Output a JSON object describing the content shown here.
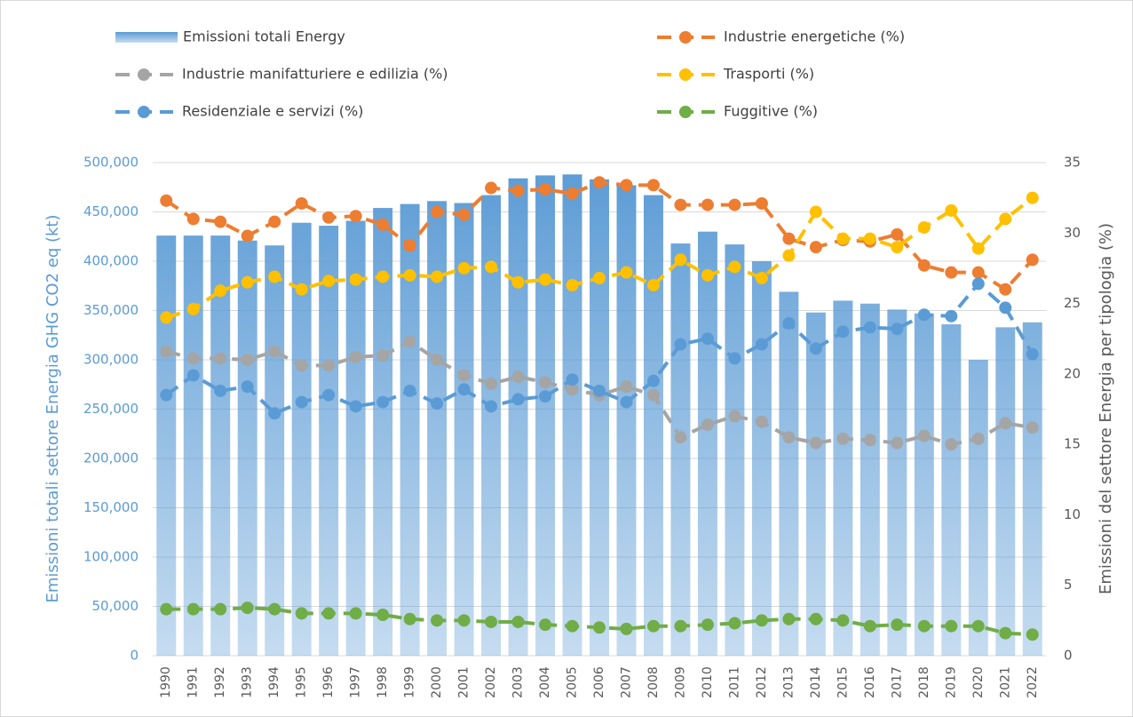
{
  "chart_data": {
    "type": "bar-line",
    "y_label": "Emissioni  totali settore Energia GHG  CO2 eq (kt)",
    "y2_label": "Emissioni del settore Energia per tipologia (%)",
    "categories": [
      "1990",
      "1991",
      "1992",
      "1993",
      "1994",
      "1995",
      "1996",
      "1997",
      "1998",
      "1999",
      "2000",
      "2001",
      "2002",
      "2003",
      "2004",
      "2005",
      "2006",
      "2007",
      "2008",
      "2009",
      "2010",
      "2011",
      "2012",
      "2013",
      "2014",
      "2015",
      "2016",
      "2017",
      "2018",
      "2019",
      "2020",
      "2021",
      "2022"
    ],
    "ylim": [
      0,
      500000
    ],
    "yticks": [
      0,
      {
        "value": 50000,
        "label": "50,000"
      },
      {
        "value": 100000,
        "label": "100,000"
      },
      {
        "value": 150000,
        "label": "150,000"
      },
      {
        "value": 200000,
        "label": "200,000"
      },
      {
        "value": 250000,
        "label": "250,000"
      },
      {
        "value": 300000,
        "label": "300,000"
      },
      {
        "value": 350000,
        "label": "350,000"
      },
      {
        "value": 400000,
        "label": "400,000"
      },
      {
        "value": 450000,
        "label": "450,000"
      },
      {
        "value": 500000,
        "label": "500,000"
      }
    ],
    "y2lim": [
      0,
      35
    ],
    "y2ticks": [
      0,
      5,
      10,
      15,
      20,
      25,
      30,
      35
    ],
    "grid": true,
    "series": [
      {
        "name": "Emissioni totali Energy",
        "type": "bar",
        "color": "#5b9bd5",
        "values": [
          426000,
          426000,
          426000,
          421000,
          416000,
          439000,
          436000,
          441000,
          454000,
          458000,
          461000,
          459000,
          467000,
          484000,
          487000,
          488000,
          483000,
          477000,
          467000,
          418000,
          430000,
          417000,
          400000,
          369000,
          348000,
          360000,
          357000,
          351000,
          347000,
          336000,
          300000,
          333000,
          338000
        ]
      },
      {
        "name": "Industrie energetiche (%)",
        "type": "line",
        "axis": "y2",
        "color": "#ed7d31",
        "values": [
          32.3,
          31.0,
          30.8,
          29.8,
          30.8,
          32.1,
          31.1,
          31.2,
          30.6,
          29.1,
          31.5,
          31.3,
          33.2,
          33.0,
          33.1,
          32.8,
          33.6,
          33.4,
          33.4,
          32.0,
          32.0,
          32.0,
          32.1,
          29.6,
          29.0,
          29.5,
          29.4,
          29.9,
          27.7,
          27.2,
          27.2,
          26.0,
          28.1
        ]
      },
      {
        "name": "Industrie manifatturiere e edilizia (%)",
        "type": "line",
        "axis": "y2",
        "color": "#a5a5a5",
        "values": [
          21.6,
          21.1,
          21.1,
          21.0,
          21.6,
          20.6,
          20.6,
          21.2,
          21.3,
          22.3,
          21.0,
          19.9,
          19.3,
          19.8,
          19.4,
          18.9,
          18.5,
          19.1,
          18.5,
          15.5,
          16.4,
          17.0,
          16.6,
          15.5,
          15.1,
          15.4,
          15.3,
          15.1,
          15.6,
          15.0,
          15.4,
          16.5,
          16.2
        ]
      },
      {
        "name": "Trasporti (%)",
        "type": "line",
        "axis": "y2",
        "color": "#ffc000",
        "values": [
          24.0,
          24.6,
          25.9,
          26.5,
          26.9,
          26.0,
          26.6,
          26.7,
          26.9,
          27.0,
          26.9,
          27.5,
          27.6,
          26.5,
          26.7,
          26.3,
          26.8,
          27.2,
          26.3,
          28.1,
          27.0,
          27.6,
          26.8,
          28.4,
          31.5,
          29.6,
          29.6,
          29.0,
          30.4,
          31.6,
          28.9,
          31.0,
          32.5
        ]
      },
      {
        "name": "Residenziale e servizi (%)",
        "type": "line",
        "axis": "y2",
        "color": "#5b9bd5",
        "values": [
          18.5,
          19.9,
          18.8,
          19.1,
          17.2,
          18.0,
          18.5,
          17.7,
          18.0,
          18.8,
          17.9,
          18.9,
          17.7,
          18.2,
          18.4,
          19.6,
          18.8,
          18.0,
          19.5,
          22.1,
          22.5,
          21.1,
          22.1,
          23.6,
          21.8,
          23.0,
          23.3,
          23.2,
          24.2,
          24.1,
          26.4,
          24.7,
          21.4
        ]
      },
      {
        "name": "Fuggitive (%)",
        "type": "line",
        "axis": "y2",
        "color": "#70ad47",
        "values": [
          3.3,
          3.3,
          3.3,
          3.4,
          3.3,
          3.0,
          3.0,
          3.0,
          2.9,
          2.6,
          2.5,
          2.5,
          2.4,
          2.4,
          2.2,
          2.1,
          2.0,
          1.9,
          2.1,
          2.1,
          2.2,
          2.3,
          2.5,
          2.6,
          2.6,
          2.5,
          2.1,
          2.2,
          2.1,
          2.1,
          2.1,
          1.6,
          1.5
        ]
      }
    ]
  }
}
